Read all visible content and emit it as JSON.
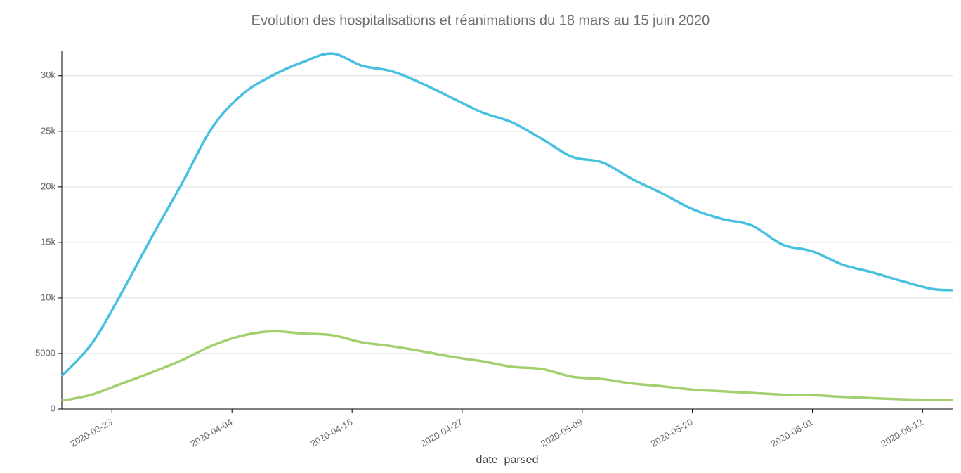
{
  "chart_data": {
    "type": "line",
    "title": "Evolution des hospitalisations et réanimations du 18 mars au 15 juin 2020",
    "x_label": "date_parsed",
    "x": [
      "2020-03-18",
      "2020-03-21",
      "2020-03-24",
      "2020-03-27",
      "2020-03-30",
      "2020-04-02",
      "2020-04-05",
      "2020-04-08",
      "2020-04-11",
      "2020-04-14",
      "2020-04-17",
      "2020-04-20",
      "2020-04-23",
      "2020-04-26",
      "2020-04-29",
      "2020-05-02",
      "2020-05-05",
      "2020-05-08",
      "2020-05-11",
      "2020-05-14",
      "2020-05-17",
      "2020-05-20",
      "2020-05-23",
      "2020-05-26",
      "2020-05-29",
      "2020-06-01",
      "2020-06-04",
      "2020-06-07",
      "2020-06-10",
      "2020-06-13",
      "2020-06-15"
    ],
    "series": [
      {
        "color": "#48c1e0",
        "values": [
          2970,
          5900,
          10500,
          15500,
          20300,
          25300,
          28300,
          30000,
          31200,
          32000,
          30900,
          30400,
          29300,
          28000,
          26700,
          25800,
          24300,
          22700,
          22200,
          20700,
          19400,
          18000,
          17100,
          16500,
          14800,
          14200,
          13000,
          12300,
          11500,
          10800,
          10700
        ]
      },
      {
        "color": "#a3cf6e",
        "values": [
          750,
          1300,
          2300,
          3300,
          4400,
          5700,
          6600,
          7000,
          6800,
          6650,
          6000,
          5650,
          5200,
          4700,
          4300,
          3800,
          3600,
          2900,
          2700,
          2300,
          2050,
          1750,
          1600,
          1450,
          1300,
          1250,
          1100,
          980,
          880,
          820,
          800
        ]
      }
    ],
    "xlim": [
      "2020-03-18",
      "2020-06-15"
    ],
    "xticks": [
      "2020-03-23",
      "2020-04-04",
      "2020-04-16",
      "2020-04-27",
      "2020-05-09",
      "2020-05-20",
      "2020-06-01",
      "2020-06-12"
    ],
    "ylim": [
      0,
      32200
    ],
    "yticks": [
      0,
      5000,
      {
        "value": 10000,
        "label": "10k"
      },
      {
        "value": 15000,
        "label": "15k"
      },
      {
        "value": 20000,
        "label": "20k"
      },
      {
        "value": 25000,
        "label": "25k"
      },
      {
        "value": 30000,
        "label": "30k"
      }
    ],
    "grid": true
  }
}
